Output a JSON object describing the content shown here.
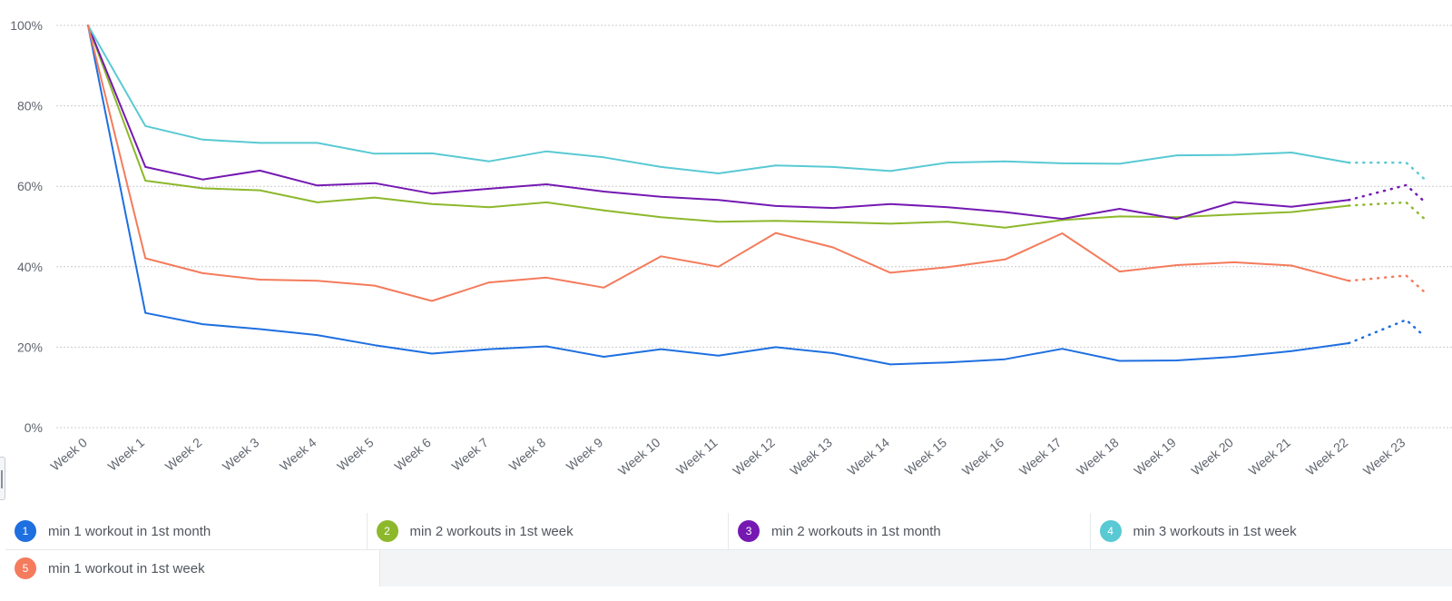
{
  "chart_data": {
    "type": "line",
    "title": "",
    "xlabel": "",
    "ylabel": "",
    "categories": [
      "Week 0",
      "Week 1",
      "Week 2",
      "Week 3",
      "Week 4",
      "Week 5",
      "Week 6",
      "Week 7",
      "Week 8",
      "Week 9",
      "Week 10",
      "Week 11",
      "Week 12",
      "Week 13",
      "Week 14",
      "Week 15",
      "Week 16",
      "Week 17",
      "Week 18",
      "Week 19",
      "Week 20",
      "Week 21",
      "Week 22",
      "Week 23"
    ],
    "yticks": [
      "0%",
      "20%",
      "40%",
      "60%",
      "80%",
      "100%"
    ],
    "ylim": [
      0,
      100
    ],
    "y_unit": "percent",
    "grid": true,
    "legend_position": "bottom",
    "incomplete_from_index": 22,
    "series": [
      {
        "id": "1",
        "name": "min 1 workout in 1st month",
        "color": "#1e6fe0",
        "values": [
          100,
          28.5,
          25.7,
          24.5,
          23.0,
          20.5,
          18.4,
          19.5,
          20.2,
          17.6,
          19.5,
          17.9,
          20.0,
          18.5,
          15.7,
          16.2,
          17.0,
          19.6,
          16.6,
          16.7,
          17.6,
          19.0,
          21.0,
          26.8
        ]
      },
      {
        "id": "2",
        "name": "min 2 workouts in 1st week",
        "color": "#8db82c",
        "values": [
          100,
          61.4,
          59.5,
          59.0,
          56.0,
          57.2,
          55.6,
          54.8,
          56.0,
          54.0,
          52.3,
          51.2,
          51.4,
          51.1,
          50.7,
          51.2,
          49.7,
          51.6,
          52.5,
          52.3,
          53.0,
          53.6,
          55.2,
          56.0
        ]
      },
      {
        "id": "3",
        "name": "min 2 workouts in 1st month",
        "color": "#7519b2",
        "values": [
          100,
          64.8,
          61.7,
          63.9,
          60.2,
          60.8,
          58.2,
          59.4,
          60.5,
          58.7,
          57.4,
          56.6,
          55.1,
          54.6,
          55.6,
          54.8,
          53.6,
          51.9,
          54.4,
          51.9,
          56.1,
          54.9,
          56.6,
          60.3
        ]
      },
      {
        "id": "4",
        "name": "min 3 workouts in 1st week",
        "color": "#59c9d3",
        "values": [
          100,
          75.0,
          71.6,
          70.8,
          70.8,
          68.1,
          68.2,
          66.2,
          68.7,
          67.2,
          64.8,
          63.2,
          65.2,
          64.8,
          63.8,
          65.9,
          66.2,
          65.7,
          65.6,
          67.7,
          67.8,
          68.4,
          65.9,
          65.9
        ]
      },
      {
        "id": "5",
        "name": "min 1 workout in 1st week",
        "color": "#f47b5c",
        "values": [
          100,
          42.1,
          38.4,
          36.8,
          36.5,
          35.3,
          31.5,
          36.1,
          37.3,
          34.8,
          42.6,
          40.0,
          48.4,
          44.8,
          38.5,
          39.9,
          41.8,
          48.3,
          38.8,
          40.4,
          41.1,
          40.3,
          36.5,
          37.8
        ]
      }
    ]
  }
}
